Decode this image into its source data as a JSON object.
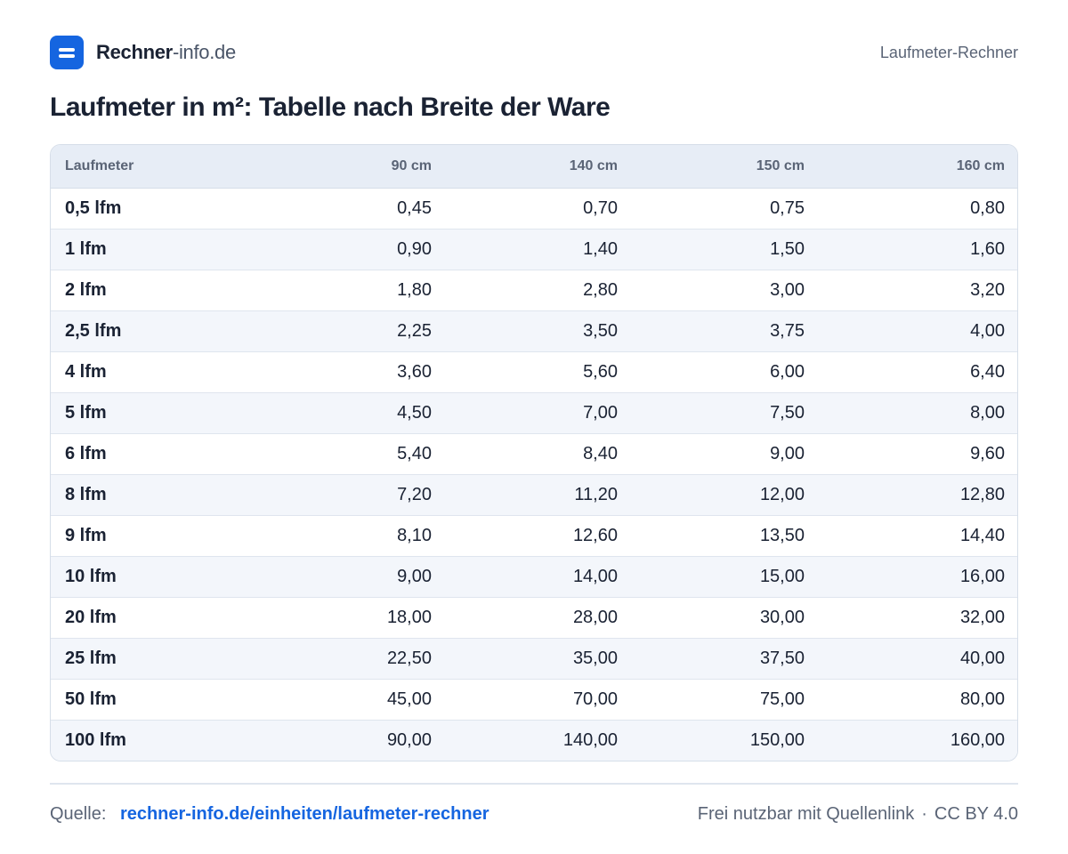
{
  "header": {
    "brand_name": "Rechner",
    "brand_domain": "-info.de",
    "logo_icon": "equals-icon",
    "brand_color": "#1565e0",
    "right_label": "Laufmeter-Rechner"
  },
  "title": "Laufmeter in m²: Tabelle nach Breite der Ware",
  "table": {
    "headers": [
      "Laufmeter",
      "90 cm",
      "140 cm",
      "150 cm",
      "160 cm"
    ],
    "rows": [
      [
        "0,5 lfm",
        "0,45",
        "0,70",
        "0,75",
        "0,80"
      ],
      [
        "1 lfm",
        "0,90",
        "1,40",
        "1,50",
        "1,60"
      ],
      [
        "2 lfm",
        "1,80",
        "2,80",
        "3,00",
        "3,20"
      ],
      [
        "2,5 lfm",
        "2,25",
        "3,50",
        "3,75",
        "4,00"
      ],
      [
        "4 lfm",
        "3,60",
        "5,60",
        "6,00",
        "6,40"
      ],
      [
        "5 lfm",
        "4,50",
        "7,00",
        "7,50",
        "8,00"
      ],
      [
        "6 lfm",
        "5,40",
        "8,40",
        "9,00",
        "9,60"
      ],
      [
        "8 lfm",
        "7,20",
        "11,20",
        "12,00",
        "12,80"
      ],
      [
        "9 lfm",
        "8,10",
        "12,60",
        "13,50",
        "14,40"
      ],
      [
        "10 lfm",
        "9,00",
        "14,00",
        "15,00",
        "16,00"
      ],
      [
        "20 lfm",
        "18,00",
        "28,00",
        "30,00",
        "32,00"
      ],
      [
        "25 lfm",
        "22,50",
        "35,00",
        "37,50",
        "40,00"
      ],
      [
        "50 lfm",
        "45,00",
        "70,00",
        "75,00",
        "80,00"
      ],
      [
        "100 lfm",
        "90,00",
        "140,00",
        "150,00",
        "160,00"
      ]
    ]
  },
  "footer": {
    "source_label": "Quelle:",
    "source_link": "rechner-info.de/einheiten/laufmeter-rechner",
    "license_text": "Frei nutzbar mit Quellenlink",
    "separator": "·",
    "license": "CC BY 4.0"
  }
}
